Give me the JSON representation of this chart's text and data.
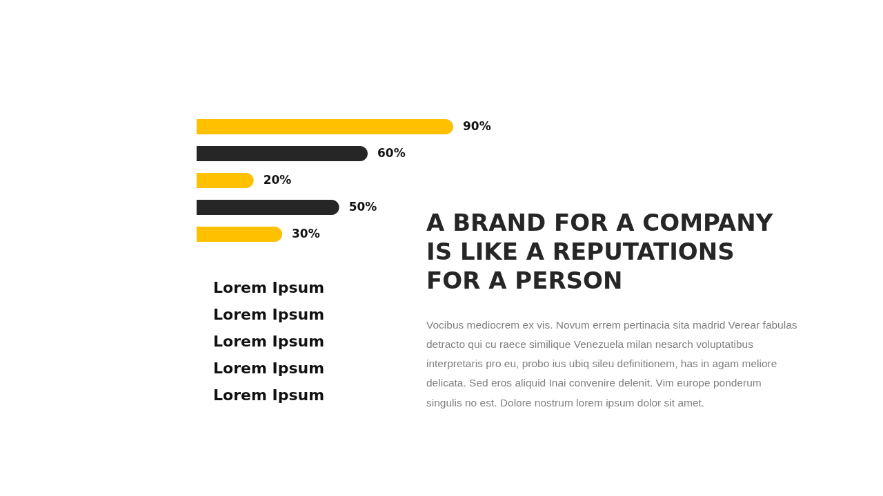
{
  "chart_data": {
    "type": "bar",
    "orientation": "horizontal",
    "title": "A BRAND FOR A COMPANY IS LIKE A REPUTATIONS FOR A PERSON",
    "subtitle": "Vocibus mediocrem ex vis. Novum errem pertinacia sita madrid Verear fabulas detracto qui cu raece similique Venezuela milan nesarch voluptatibus interpretaris pro eu, probo ius ubiq sileu definitionem, has in agam meliore delicata. Sed eros aliquid Inai convenire delenit. Vim europe ponderum singulis no est. Dolore nostrum lorem ipsum dolor sit amet.",
    "categories": [
      null,
      null,
      null,
      null,
      null
    ],
    "values": [
      90,
      60,
      20,
      50,
      30
    ],
    "colors": [
      "#ffc000",
      "#262626",
      "#ffc000",
      "#262626",
      "#ffc000"
    ],
    "value_labels": [
      "90%",
      "60%",
      "20%",
      "50%",
      "30%"
    ],
    "annotations": [
      "Lorem Ipsum",
      "Lorem Ipsum",
      "Lorem Ipsum",
      "Lorem Ipsum",
      "Lorem Ipsum"
    ]
  }
}
